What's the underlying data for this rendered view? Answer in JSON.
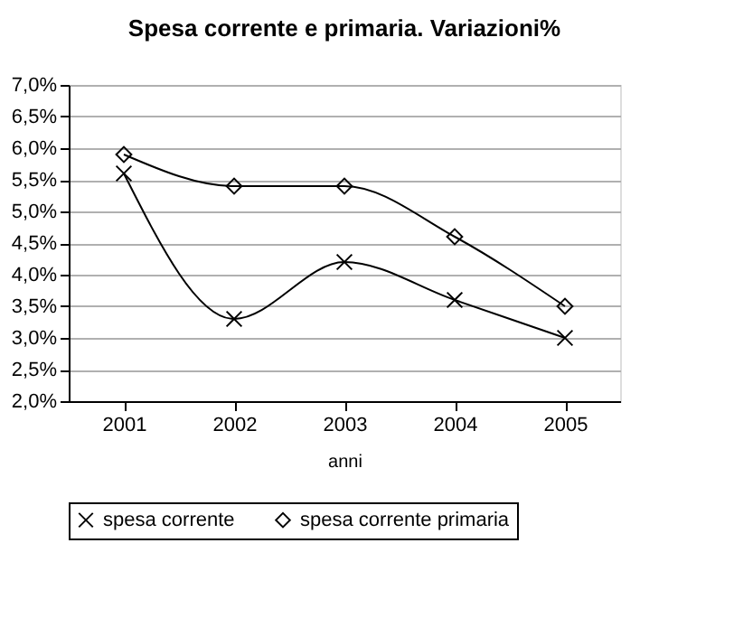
{
  "chart_data": {
    "type": "line",
    "title": "Spesa corrente e primaria. Variazioni%",
    "xlabel": "anni",
    "categories": [
      "2001",
      "2002",
      "2003",
      "2004",
      "2005"
    ],
    "series": [
      {
        "name": "spesa corrente",
        "color": "#000000",
        "marker": "cross",
        "values": [
          5.6,
          3.3,
          4.2,
          3.6,
          3.0
        ]
      },
      {
        "name": "spesa corrente primaria",
        "color": "#000000",
        "marker": "diamond",
        "values": [
          5.9,
          5.4,
          5.4,
          4.6,
          3.5
        ]
      }
    ],
    "ylim": [
      2.0,
      7.0
    ],
    "yticks": [
      {
        "value": 2.0,
        "label": "2,0%"
      },
      {
        "value": 2.5,
        "label": "2,5%"
      },
      {
        "value": 3.0,
        "label": "3,0%"
      },
      {
        "value": 3.5,
        "label": "3,5%"
      },
      {
        "value": 4.0,
        "label": "4,0%"
      },
      {
        "value": 4.5,
        "label": "4,5%"
      },
      {
        "value": 5.0,
        "label": "5,0%"
      },
      {
        "value": 5.5,
        "label": "5,5%"
      },
      {
        "value": 6.0,
        "label": "6,0%"
      },
      {
        "value": 6.5,
        "label": "6,5%"
      },
      {
        "value": 7.0,
        "label": "7,0%"
      }
    ],
    "grid": "y",
    "legend": "bottom",
    "line_style": "solid"
  }
}
